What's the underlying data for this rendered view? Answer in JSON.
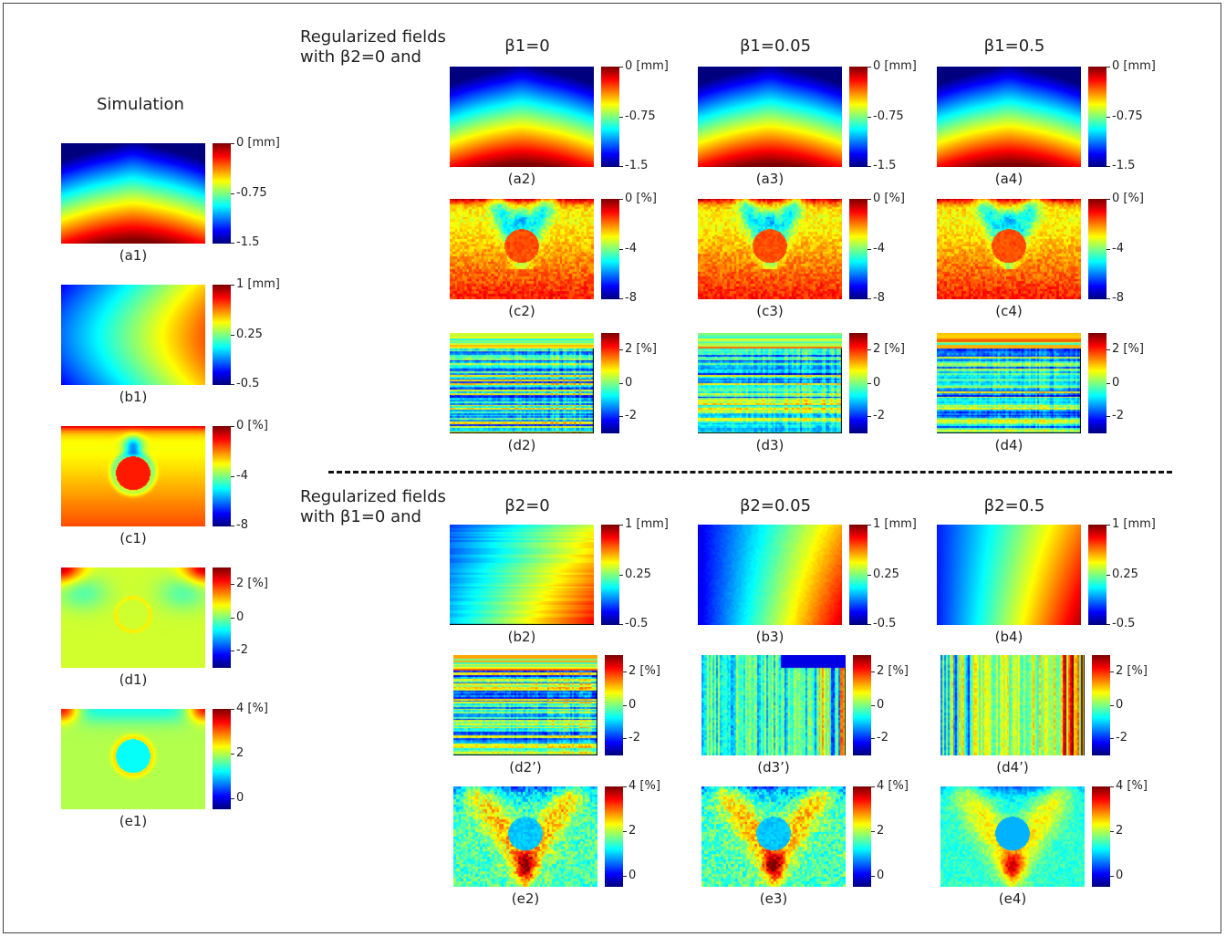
{
  "headings": {
    "simulation": "Simulation",
    "top_block": [
      "Regularized fields",
      "with β2=0 and"
    ],
    "bottom_block": [
      "Regularized fields",
      "with β1=0 and"
    ]
  },
  "columns": {
    "top": [
      "β1=0",
      "β1=0.05",
      "β1=0.5"
    ],
    "bottom": [
      "β2=0",
      "β2=0.05",
      "β2=0.5"
    ]
  },
  "colorbars": {
    "a": {
      "ticks": [
        "0 [mm]",
        "-0.75",
        "-1.5"
      ],
      "range": [
        -1.5,
        0
      ]
    },
    "b": {
      "ticks": [
        "1 [mm]",
        "0.25",
        "-0.5"
      ],
      "range": [
        -0.5,
        1
      ]
    },
    "c": {
      "ticks": [
        "0 [%]",
        "-4",
        "-8"
      ],
      "range": [
        -8,
        0
      ]
    },
    "d": {
      "ticks": [
        "2 [%]",
        "0",
        "-2"
      ],
      "range": [
        -3,
        3
      ]
    },
    "e": {
      "ticks": [
        "4 [%]",
        "2",
        "0"
      ],
      "range": [
        -1,
        4
      ]
    }
  },
  "panels": [
    {
      "id": "a1",
      "label": "(a1)",
      "bar": "a",
      "pattern": "uy"
    },
    {
      "id": "b1",
      "label": "(b1)",
      "bar": "b",
      "pattern": "ux-smooth"
    },
    {
      "id": "c1",
      "label": "(c1)",
      "bar": "c",
      "pattern": "eyy-smooth"
    },
    {
      "id": "d1",
      "label": "(d1)",
      "bar": "d",
      "pattern": "exx-smooth"
    },
    {
      "id": "e1",
      "label": "(e1)",
      "bar": "e",
      "pattern": "exy-smooth"
    },
    {
      "id": "a2",
      "label": "(a2)",
      "bar": "a",
      "pattern": "uy"
    },
    {
      "id": "a3",
      "label": "(a3)",
      "bar": "a",
      "pattern": "uy"
    },
    {
      "id": "a4",
      "label": "(a4)",
      "bar": "a",
      "pattern": "uy"
    },
    {
      "id": "c2",
      "label": "(c2)",
      "bar": "c",
      "pattern": "eyy-noisy"
    },
    {
      "id": "c3",
      "label": "(c3)",
      "bar": "c",
      "pattern": "eyy-noisy"
    },
    {
      "id": "c4",
      "label": "(c4)",
      "bar": "c",
      "pattern": "eyy-noisy"
    },
    {
      "id": "d2",
      "label": "(d2)",
      "bar": "d",
      "pattern": "stripes"
    },
    {
      "id": "d3",
      "label": "(d3)",
      "bar": "d",
      "pattern": "stripes"
    },
    {
      "id": "d4",
      "label": "(d4)",
      "bar": "d",
      "pattern": "stripes"
    },
    {
      "id": "b2",
      "label": "(b2)",
      "bar": "b",
      "pattern": "ux-noisy"
    },
    {
      "id": "b3",
      "label": "(b3)",
      "bar": "b",
      "pattern": "ux-mid"
    },
    {
      "id": "b4",
      "label": "(b4)",
      "bar": "b",
      "pattern": "ux-smooth2"
    },
    {
      "id": "d2p",
      "label": "(d2’)",
      "bar": "d",
      "pattern": "stripes"
    },
    {
      "id": "d3p",
      "label": "(d3’)",
      "bar": "d",
      "pattern": "vstripes"
    },
    {
      "id": "d4p",
      "label": "(d4’)",
      "bar": "d",
      "pattern": "vstripes2"
    },
    {
      "id": "e2",
      "label": "(e2)",
      "bar": "e",
      "pattern": "exy-noisy"
    },
    {
      "id": "e3",
      "label": "(e3)",
      "bar": "e",
      "pattern": "exy-noisy"
    },
    {
      "id": "e4",
      "label": "(e4)",
      "bar": "e",
      "pattern": "exy-mid"
    }
  ]
}
